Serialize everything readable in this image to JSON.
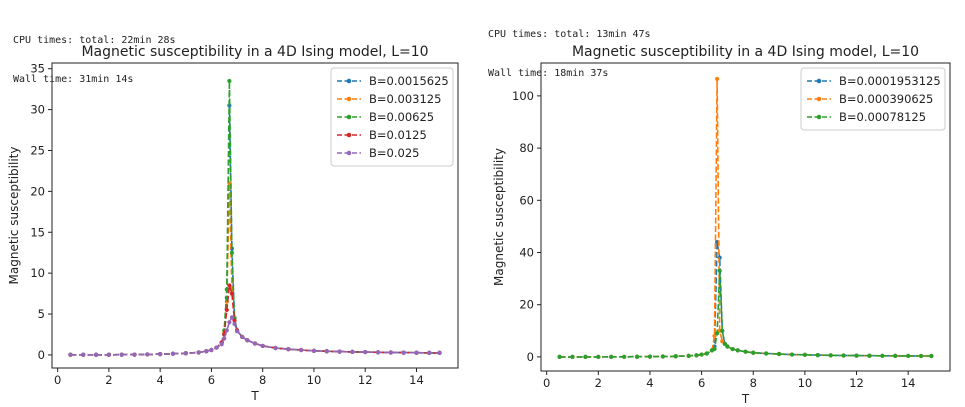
{
  "outputs": [
    {
      "cpu": "CPU times: total: 22min 28s",
      "wall": "Wall time: 31min 14s"
    },
    {
      "cpu": "CPU times: total: 13min 47s",
      "wall": "Wall time: 18min 37s"
    }
  ],
  "chart_data": [
    {
      "type": "line",
      "title": "Magnetic susceptibility in a 4D Ising model, L=10",
      "xlabel": "T",
      "ylabel": "Magnetic susceptibility",
      "xlim": [
        -0.22,
        15.62
      ],
      "ylim": [
        -1.6,
        35.7
      ],
      "xticks": [
        0,
        2,
        4,
        6,
        8,
        10,
        12,
        14
      ],
      "yticks": [
        0,
        5,
        10,
        15,
        20,
        25,
        30,
        35
      ],
      "legend_position": "top-right",
      "x": [
        0.5,
        1.0,
        1.5,
        2.0,
        2.5,
        3.0,
        3.5,
        4.0,
        4.5,
        5.0,
        5.5,
        5.8,
        6.0,
        6.2,
        6.4,
        6.5,
        6.6,
        6.7,
        6.8,
        6.9,
        7.0,
        7.2,
        7.4,
        7.7,
        8.0,
        8.5,
        9.0,
        9.5,
        10.0,
        10.5,
        11.0,
        11.5,
        12.0,
        12.5,
        13.0,
        13.5,
        14.0,
        14.5,
        14.9
      ],
      "series": [
        {
          "name": "B=0.0015625",
          "color": "#1f77b4",
          "values": [
            0.02,
            0.02,
            0.02,
            0.02,
            0.03,
            0.04,
            0.06,
            0.1,
            0.14,
            0.2,
            0.3,
            0.45,
            0.6,
            0.9,
            1.5,
            2.5,
            7,
            30.5,
            13,
            4.5,
            3,
            2.2,
            1.8,
            1.4,
            1.1,
            0.85,
            0.7,
            0.6,
            0.5,
            0.45,
            0.4,
            0.37,
            0.35,
            0.32,
            0.3,
            0.28,
            0.27,
            0.25,
            0.25
          ]
        },
        {
          "name": "B=0.003125",
          "color": "#ff7f0e",
          "values": [
            0.02,
            0.02,
            0.02,
            0.02,
            0.03,
            0.04,
            0.06,
            0.1,
            0.14,
            0.2,
            0.3,
            0.45,
            0.6,
            0.9,
            1.5,
            2.8,
            6.5,
            21,
            8,
            4.5,
            3,
            2.2,
            1.8,
            1.4,
            1.1,
            0.85,
            0.7,
            0.6,
            0.5,
            0.45,
            0.4,
            0.37,
            0.35,
            0.32,
            0.3,
            0.28,
            0.27,
            0.25,
            0.25
          ]
        },
        {
          "name": "B=0.00625",
          "color": "#2ca02c",
          "values": [
            0.02,
            0.02,
            0.02,
            0.02,
            0.03,
            0.04,
            0.06,
            0.1,
            0.14,
            0.2,
            0.3,
            0.45,
            0.6,
            0.9,
            1.5,
            3,
            8,
            33.5,
            12.5,
            4.5,
            3,
            2.2,
            1.8,
            1.4,
            1.1,
            0.85,
            0.7,
            0.6,
            0.5,
            0.45,
            0.4,
            0.37,
            0.35,
            0.32,
            0.3,
            0.28,
            0.27,
            0.25,
            0.25
          ]
        },
        {
          "name": "B=0.0125",
          "color": "#d62728",
          "values": [
            0.02,
            0.02,
            0.02,
            0.02,
            0.03,
            0.04,
            0.06,
            0.1,
            0.14,
            0.2,
            0.3,
            0.45,
            0.6,
            0.9,
            1.5,
            2.5,
            5.5,
            8.5,
            7.5,
            4.2,
            3,
            2.2,
            1.8,
            1.4,
            1.1,
            0.85,
            0.7,
            0.6,
            0.5,
            0.45,
            0.4,
            0.37,
            0.35,
            0.32,
            0.3,
            0.28,
            0.27,
            0.25,
            0.25
          ]
        },
        {
          "name": "B=0.025",
          "color": "#9467bd",
          "values": [
            0.02,
            0.02,
            0.02,
            0.02,
            0.03,
            0.04,
            0.06,
            0.1,
            0.14,
            0.2,
            0.3,
            0.45,
            0.6,
            0.9,
            1.3,
            2,
            3,
            4,
            4.6,
            3.8,
            2.9,
            2.2,
            1.8,
            1.4,
            1.1,
            0.85,
            0.7,
            0.6,
            0.5,
            0.45,
            0.4,
            0.37,
            0.35,
            0.32,
            0.3,
            0.28,
            0.27,
            0.25,
            0.25
          ]
        }
      ]
    },
    {
      "type": "line",
      "title": "Magnetic susceptibility in a 4D Ising model, L=10",
      "xlabel": "T",
      "ylabel": "Magnetic susceptibility",
      "xlim": [
        -0.22,
        15.62
      ],
      "ylim": [
        -5.4,
        112.6
      ],
      "xticks": [
        0,
        2,
        4,
        6,
        8,
        10,
        12,
        14
      ],
      "yticks": [
        0,
        20,
        40,
        60,
        80,
        100
      ],
      "legend_position": "top-right",
      "x": [
        0.5,
        1.0,
        1.5,
        2.0,
        2.5,
        3.0,
        3.5,
        4.0,
        4.5,
        5.0,
        5.5,
        5.8,
        6.0,
        6.2,
        6.4,
        6.5,
        6.6,
        6.7,
        6.8,
        6.9,
        7.0,
        7.2,
        7.4,
        7.7,
        8.0,
        8.5,
        9.0,
        9.5,
        10.0,
        10.5,
        11.0,
        11.5,
        12.0,
        12.5,
        13.0,
        13.5,
        14.0,
        14.5,
        14.9
      ],
      "series": [
        {
          "name": "B=0.0001953125",
          "color": "#1f77b4",
          "values": [
            0.02,
            0.02,
            0.02,
            0.02,
            0.03,
            0.04,
            0.06,
            0.1,
            0.15,
            0.25,
            0.4,
            0.6,
            0.9,
            1.3,
            2.5,
            4,
            44,
            38,
            10,
            5,
            4,
            3,
            2.5,
            2,
            1.6,
            1.3,
            1.1,
            0.9,
            0.8,
            0.7,
            0.6,
            0.55,
            0.5,
            0.45,
            0.42,
            0.4,
            0.38,
            0.35,
            0.35
          ]
        },
        {
          "name": "B=0.000390625",
          "color": "#ff7f0e",
          "values": [
            0.02,
            0.02,
            0.02,
            0.02,
            0.03,
            0.04,
            0.06,
            0.1,
            0.15,
            0.25,
            0.4,
            0.6,
            0.9,
            1.3,
            2.5,
            8,
            106.5,
            10,
            6,
            5,
            4,
            3,
            2.5,
            2,
            1.6,
            1.3,
            1.1,
            0.9,
            0.8,
            0.7,
            0.6,
            0.55,
            0.5,
            0.45,
            0.42,
            0.4,
            0.38,
            0.35,
            0.35
          ]
        },
        {
          "name": "B=0.00078125",
          "color": "#2ca02c",
          "values": [
            0.02,
            0.02,
            0.02,
            0.02,
            0.03,
            0.04,
            0.06,
            0.1,
            0.15,
            0.25,
            0.4,
            0.6,
            0.9,
            1.3,
            2.5,
            3,
            9,
            33,
            10,
            5,
            4,
            3,
            2.5,
            2,
            1.6,
            1.3,
            1.1,
            0.9,
            0.8,
            0.7,
            0.6,
            0.55,
            0.5,
            0.45,
            0.42,
            0.4,
            0.38,
            0.35,
            0.35
          ]
        }
      ]
    }
  ]
}
